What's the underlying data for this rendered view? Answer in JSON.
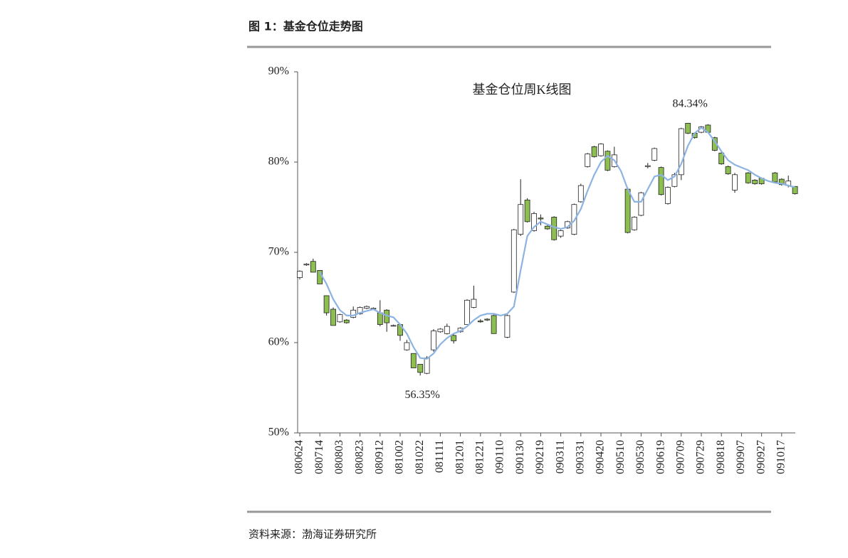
{
  "header": {
    "title": "图 1：基金仓位走势图"
  },
  "chart_data": {
    "type": "candlestick",
    "title": "基金仓位周K线图",
    "categories": [
      "080624",
      null,
      null,
      "080714",
      null,
      null,
      "080803",
      null,
      null,
      "080823",
      null,
      null,
      "080912",
      null,
      null,
      "081002",
      null,
      null,
      "081022",
      null,
      null,
      "081111",
      null,
      null,
      "081201",
      null,
      null,
      "081221",
      null,
      null,
      "090110",
      null,
      null,
      "090130",
      null,
      null,
      "090219",
      null,
      null,
      "090311",
      null,
      null,
      "090331",
      null,
      null,
      "090420",
      null,
      null,
      "090510",
      null,
      null,
      "090530",
      null,
      null,
      "090619",
      null,
      null,
      "090709",
      null,
      null,
      "090729",
      null,
      null,
      "090818",
      null,
      null,
      "090907",
      null,
      null,
      "090927",
      null,
      null,
      "091017",
      null,
      null
    ],
    "open": [
      67.2,
      68.6,
      69.0,
      68.0,
      65.2,
      63.7,
      62.3,
      62.5,
      62.8,
      63.2,
      63.8,
      63.8,
      63.3,
      63.6,
      61.9,
      62.0,
      59.2,
      58.8,
      57.6,
      56.6,
      59.2,
      61.2,
      61.0,
      60.8,
      61.2,
      62.0,
      63.9,
      62.4,
      62.6,
      63.0,
      null,
      60.6,
      65.6,
      72.0,
      75.8,
      72.4,
      73.8,
      72.9,
      73.9,
      71.8,
      72.7,
      72.0,
      75.6,
      79.5,
      81.7,
      80.7,
      81.2,
      79.5,
      null,
      77.0,
      72.5,
      74.1,
      79.5,
      80.2,
      79.4,
      75.4,
      77.3,
      78.6,
      84.3,
      83.2,
      83.3,
      84.1,
      82.7,
      81.0,
      79.5,
      76.9,
      null,
      78.8,
      78.0,
      78.2,
      null,
      78.8,
      78.1,
      77.4,
      77.3
    ],
    "high": [
      68.0,
      68.8,
      69.3,
      68.0,
      65.2,
      63.9,
      63.2,
      62.6,
      64.0,
      64.0,
      64.1,
      63.9,
      64.7,
      63.7,
      62.0,
      62.1,
      60.3,
      58.8,
      57.6,
      58.5,
      61.5,
      61.6,
      62.1,
      61.0,
      61.7,
      64.8,
      66.3,
      62.6,
      62.7,
      63.1,
      null,
      63.1,
      72.6,
      78.1,
      76.0,
      74.5,
      74.2,
      73.0,
      74.0,
      72.5,
      73.5,
      75.4,
      77.6,
      81.0,
      81.8,
      82.1,
      81.3,
      81.7,
      null,
      77.2,
      74.0,
      76.7,
      79.9,
      81.6,
      79.5,
      77.3,
      78.8,
      83.8,
      84.34,
      83.3,
      84.0,
      84.2,
      82.8,
      81.1,
      79.6,
      78.8,
      null,
      78.9,
      78.1,
      78.3,
      null,
      78.9,
      78.2,
      78.5,
      77.3
    ],
    "low": [
      67.0,
      68.5,
      67.8,
      66.5,
      63.0,
      61.9,
      62.2,
      62.1,
      62.7,
      63.1,
      63.7,
      63.7,
      61.8,
      61.2,
      61.8,
      60.2,
      59.1,
      57.2,
      56.35,
      56.5,
      59.0,
      61.1,
      60.9,
      59.9,
      61.1,
      62.0,
      63.8,
      62.2,
      62.4,
      61.0,
      null,
      60.5,
      65.5,
      71.8,
      73.3,
      72.3,
      73.0,
      72.5,
      71.3,
      71.6,
      72.6,
      71.9,
      75.5,
      79.4,
      80.5,
      80.6,
      79.0,
      79.4,
      null,
      72.1,
      72.4,
      74.0,
      79.3,
      80.1,
      76.3,
      75.3,
      77.2,
      78.0,
      83.1,
      82.6,
      83.2,
      83.2,
      81.2,
      79.7,
      78.6,
      76.6,
      null,
      77.6,
      77.5,
      77.5,
      null,
      77.7,
      77.4,
      77.2,
      76.4
    ],
    "close": [
      67.9,
      68.7,
      67.8,
      66.5,
      63.3,
      61.9,
      63.1,
      62.2,
      63.6,
      63.9,
      64.0,
      63.8,
      62.0,
      62.2,
      61.9,
      60.8,
      60.0,
      57.2,
      56.7,
      58.3,
      61.3,
      61.5,
      61.8,
      60.2,
      61.6,
      64.7,
      64.8,
      62.3,
      62.5,
      61.0,
      null,
      63.0,
      72.5,
      75.3,
      73.4,
      74.3,
      73.7,
      72.6,
      71.4,
      72.4,
      73.4,
      75.3,
      77.4,
      80.9,
      80.6,
      82.0,
      79.1,
      80.8,
      null,
      72.2,
      73.9,
      76.6,
      79.6,
      81.5,
      76.4,
      77.2,
      78.6,
      83.7,
      83.2,
      82.7,
      83.9,
      83.3,
      81.3,
      79.8,
      78.7,
      78.6,
      null,
      77.7,
      77.6,
      77.6,
      null,
      77.8,
      77.5,
      77.9,
      76.5
    ],
    "up_color": "#ffffff",
    "down_color": "#8cbf4f",
    "ma": {
      "color": "#8db3e2",
      "values": [
        null,
        null,
        null,
        67.8,
        66.5,
        64.8,
        63.6,
        63.0,
        63.0,
        63.3,
        63.5,
        63.7,
        63.3,
        63.0,
        62.8,
        62.0,
        61.0,
        59.5,
        58.3,
        58.2,
        58.8,
        59.8,
        60.5,
        61.0,
        61.3,
        61.8,
        62.5,
        63.0,
        63.2,
        63.2,
        63.0,
        63.2,
        64.0,
        68.0,
        71.8,
        72.8,
        73.4,
        73.1,
        72.8,
        72.6,
        72.8,
        73.5,
        74.8,
        76.8,
        78.6,
        80.0,
        80.7,
        80.2,
        79.0,
        77.0,
        75.6,
        75.6,
        77.0,
        78.4,
        78.6,
        78.0,
        78.4,
        79.8,
        81.8,
        83.2,
        83.8,
        83.3,
        82.3,
        81.2,
        80.2,
        79.7,
        79.4,
        79.1,
        78.6,
        78.2,
        77.9,
        77.7,
        77.6,
        77.4,
        77.2
      ]
    },
    "annotations": [
      {
        "text": "84.34%",
        "index": 58
      },
      {
        "text": "56.35%",
        "index": 18
      }
    ],
    "ylim": [
      50,
      90
    ],
    "yticks": [
      {
        "value": 50,
        "label": "50%"
      },
      {
        "value": 60,
        "label": "60%"
      },
      {
        "value": 70,
        "label": "70%"
      },
      {
        "value": 80,
        "label": "80%"
      },
      {
        "value": 90,
        "label": "90%"
      }
    ]
  },
  "footer": {
    "source": "资料来源：渤海证券研究所"
  }
}
